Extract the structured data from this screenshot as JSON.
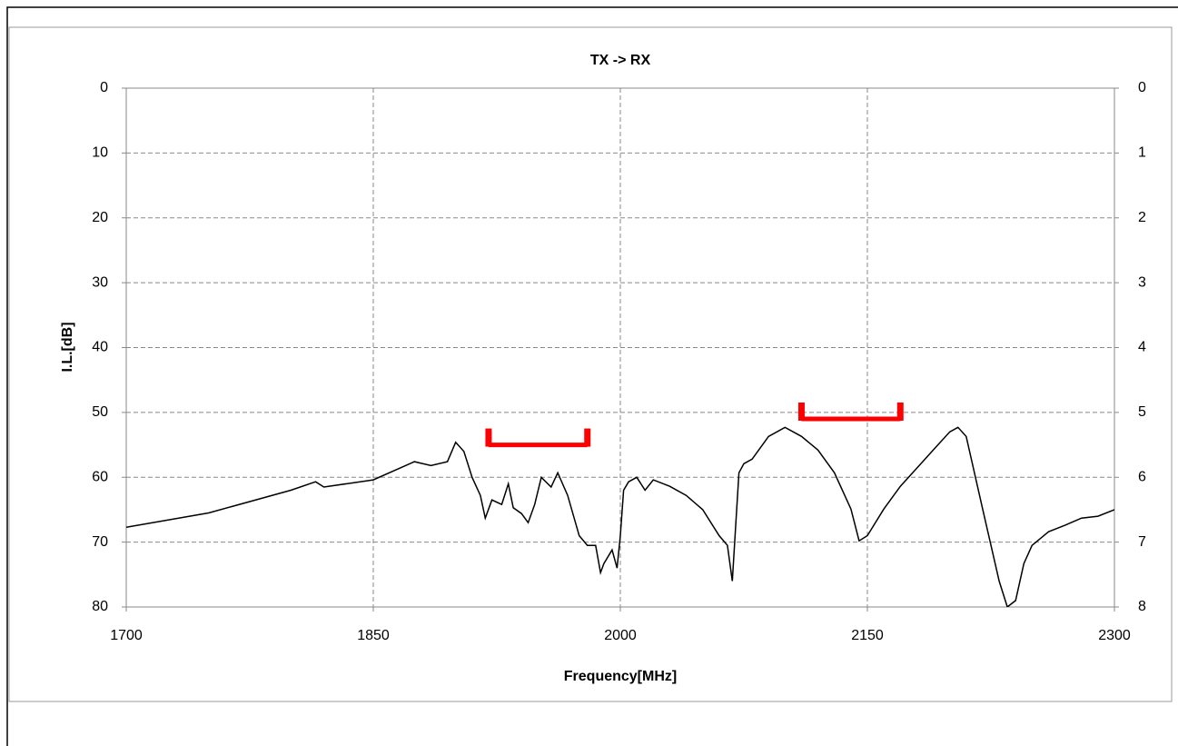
{
  "chart_data": {
    "type": "line",
    "title": "TX -> RX",
    "x_label": "Frequency[MHz]",
    "y_label": "I.L.[dB]",
    "xlim": [
      1700,
      2300
    ],
    "xticks": [
      1700,
      1850,
      2000,
      2150,
      2300
    ],
    "ylim": [
      80,
      0
    ],
    "yticks": [
      0,
      10,
      20,
      30,
      40,
      50,
      60,
      70,
      80
    ],
    "y2lim": [
      8,
      0
    ],
    "y2ticks": [
      0,
      1,
      2,
      3,
      4,
      5,
      6,
      7,
      8
    ],
    "grid": true,
    "series": [
      {
        "color": "#000000",
        "x": [
          1700,
          1750,
          1800,
          1815,
          1820,
          1850,
          1875,
          1885,
          1895,
          1900,
          1905,
          1910,
          1915,
          1918,
          1922,
          1928,
          1932,
          1935,
          1940,
          1944,
          1948,
          1952,
          1958,
          1962,
          1968,
          1975,
          1980,
          1985,
          1988,
          1990,
          1995,
          1998,
          2000,
          2002,
          2005,
          2010,
          2015,
          2020,
          2030,
          2040,
          2050,
          2060,
          2065,
          2068,
          2070,
          2072,
          2075,
          2080,
          2090,
          2100,
          2110,
          2120,
          2130,
          2140,
          2145,
          2150,
          2160,
          2170,
          2180,
          2190,
          2200,
          2205,
          2210,
          2220,
          2230,
          2235,
          2240,
          2245,
          2250,
          2260,
          2270,
          2280,
          2290,
          2300
        ],
        "values": [
          67.7,
          65.5,
          62,
          60.7,
          61.5,
          60.4,
          57.6,
          58.2,
          57.6,
          54.6,
          56,
          60,
          62.8,
          66.3,
          63.5,
          64.2,
          61,
          64.7,
          65.6,
          67,
          64.2,
          60,
          61.5,
          59.3,
          62.8,
          69,
          70.5,
          70.5,
          74.7,
          73.3,
          71.2,
          74,
          69,
          62,
          60.7,
          60,
          62,
          60.4,
          61.4,
          62.8,
          65,
          69,
          70.5,
          76,
          67.7,
          59.3,
          57.9,
          57.2,
          53.7,
          52.3,
          53.7,
          55.8,
          59.3,
          64.9,
          69.8,
          69,
          64.9,
          61.4,
          58.6,
          55.8,
          53,
          52.3,
          53.7,
          64.9,
          76,
          80,
          79,
          73.3,
          70.5,
          68.4,
          67.4,
          66.3,
          66,
          65
        ]
      },
      {
        "color": "#ff0000",
        "x": [
          1920,
          1980
        ],
        "values": [
          55,
          55
        ]
      },
      {
        "color": "#ff0000",
        "x": [
          2110,
          2170
        ],
        "values": [
          51,
          51
        ]
      }
    ]
  }
}
